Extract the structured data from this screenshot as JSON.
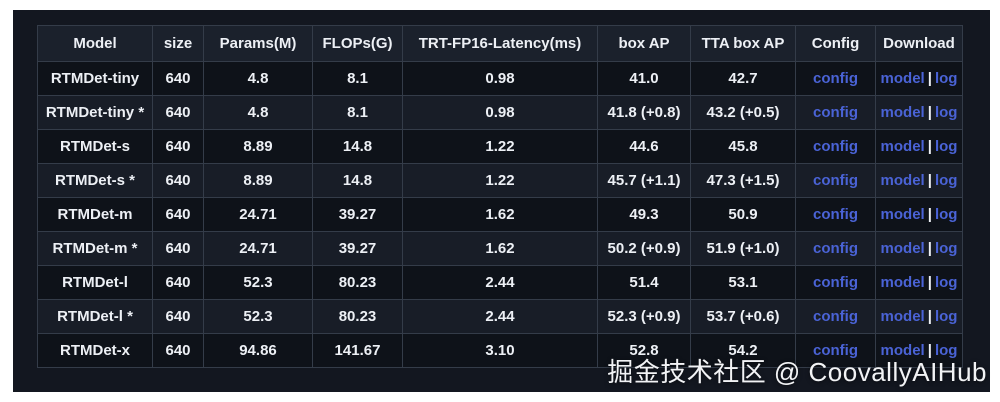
{
  "page": {
    "frame_background": "#ffffff",
    "canvas_background": "#131720"
  },
  "watermark": {
    "text": "掘金技术社区 @ CoovallyAIHub"
  },
  "table": {
    "headers": [
      "Model",
      "size",
      "Params(M)",
      "FLOPs(G)",
      "TRT-FP16-Latency(ms)",
      "box AP",
      "TTA box AP",
      "Config",
      "Download"
    ],
    "links": {
      "config_label": "config",
      "model_label": "model",
      "log_label": "log",
      "separator": "|"
    },
    "colors": {
      "link": "#4a63d6",
      "text": "#edf0f5",
      "border": "#343c49",
      "header_bg": "#1b212c",
      "row_odd_bg": "#0e1219",
      "row_even_bg": "#181d27"
    },
    "rows": [
      {
        "model": "RTMDet-tiny",
        "size": "640",
        "params_m": "4.8",
        "flops_g": "8.1",
        "latency_ms": "0.98",
        "box_ap": "41.0",
        "tta_box_ap": "42.7"
      },
      {
        "model": "RTMDet-tiny *",
        "size": "640",
        "params_m": "4.8",
        "flops_g": "8.1",
        "latency_ms": "0.98",
        "box_ap": "41.8 (+0.8)",
        "tta_box_ap": "43.2 (+0.5)"
      },
      {
        "model": "RTMDet-s",
        "size": "640",
        "params_m": "8.89",
        "flops_g": "14.8",
        "latency_ms": "1.22",
        "box_ap": "44.6",
        "tta_box_ap": "45.8"
      },
      {
        "model": "RTMDet-s *",
        "size": "640",
        "params_m": "8.89",
        "flops_g": "14.8",
        "latency_ms": "1.22",
        "box_ap": "45.7 (+1.1)",
        "tta_box_ap": "47.3 (+1.5)"
      },
      {
        "model": "RTMDet-m",
        "size": "640",
        "params_m": "24.71",
        "flops_g": "39.27",
        "latency_ms": "1.62",
        "box_ap": "49.3",
        "tta_box_ap": "50.9"
      },
      {
        "model": "RTMDet-m *",
        "size": "640",
        "params_m": "24.71",
        "flops_g": "39.27",
        "latency_ms": "1.62",
        "box_ap": "50.2 (+0.9)",
        "tta_box_ap": "51.9 (+1.0)"
      },
      {
        "model": "RTMDet-l",
        "size": "640",
        "params_m": "52.3",
        "flops_g": "80.23",
        "latency_ms": "2.44",
        "box_ap": "51.4",
        "tta_box_ap": "53.1"
      },
      {
        "model": "RTMDet-l *",
        "size": "640",
        "params_m": "52.3",
        "flops_g": "80.23",
        "latency_ms": "2.44",
        "box_ap": "52.3 (+0.9)",
        "tta_box_ap": "53.7 (+0.6)"
      },
      {
        "model": "RTMDet-x",
        "size": "640",
        "params_m": "94.86",
        "flops_g": "141.67",
        "latency_ms": "3.10",
        "box_ap": "52.8",
        "tta_box_ap": "54.2"
      }
    ]
  }
}
